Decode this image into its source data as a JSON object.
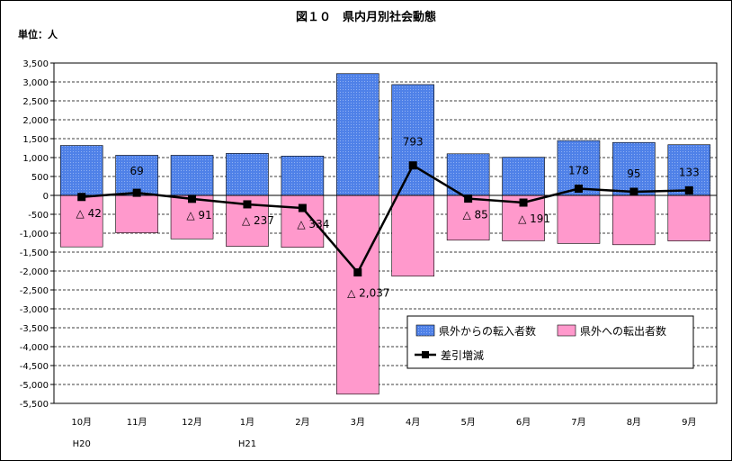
{
  "chart_data": {
    "type": "bar",
    "title": "図１０　県内月別社会動態",
    "unit_label": "単位：人",
    "categories": [
      "10月",
      "11月",
      "12月",
      "1月",
      "2月",
      "3月",
      "4月",
      "5月",
      "6月",
      "7月",
      "8月",
      "9月"
    ],
    "sub_labels": [
      "H20",
      "",
      "",
      "H21",
      "",
      "",
      "",
      "",
      "",
      "",
      "",
      ""
    ],
    "ylim": [
      -5500,
      3500
    ],
    "ytick_step": 500,
    "ytick_labels": [
      "3,500",
      "3,000",
      "2,500",
      "2,000",
      "1,500",
      "1,000",
      "500",
      "0",
      "-500",
      "-1,000",
      "-1,500",
      "-2,000",
      "-2,500",
      "-3,000",
      "-3,500",
      "-4,000",
      "-4,500",
      "-5,000",
      "-5,500"
    ],
    "grid": true,
    "legend_position": "bottom-right",
    "series": [
      {
        "name": "県外からの転入者数",
        "type": "bar",
        "color": "#4f81e8",
        "pattern": "dotted",
        "values": [
          1320,
          1060,
          1060,
          1110,
          1040,
          3220,
          2930,
          1100,
          1010,
          1450,
          1400,
          1340
        ]
      },
      {
        "name": "県外への転出者数",
        "type": "bar",
        "color": "#ff99cc",
        "values": [
          -1362,
          -991,
          -1151,
          -1347,
          -1374,
          -5257,
          -2137,
          -1185,
          -1201,
          -1272,
          -1305,
          -1207
        ]
      },
      {
        "name": "差引増減",
        "type": "line",
        "color": "#000000",
        "marker": "square",
        "values": [
          -42,
          69,
          -91,
          -237,
          -334,
          -2037,
          793,
          -85,
          -191,
          178,
          95,
          133
        ]
      }
    ],
    "data_labels": [
      "△ 42",
      "69",
      "△ 91",
      "△ 237",
      "△ 334",
      "△ 2,037",
      "793",
      "△ 85",
      "△ 191",
      "178",
      "95",
      "133"
    ]
  }
}
